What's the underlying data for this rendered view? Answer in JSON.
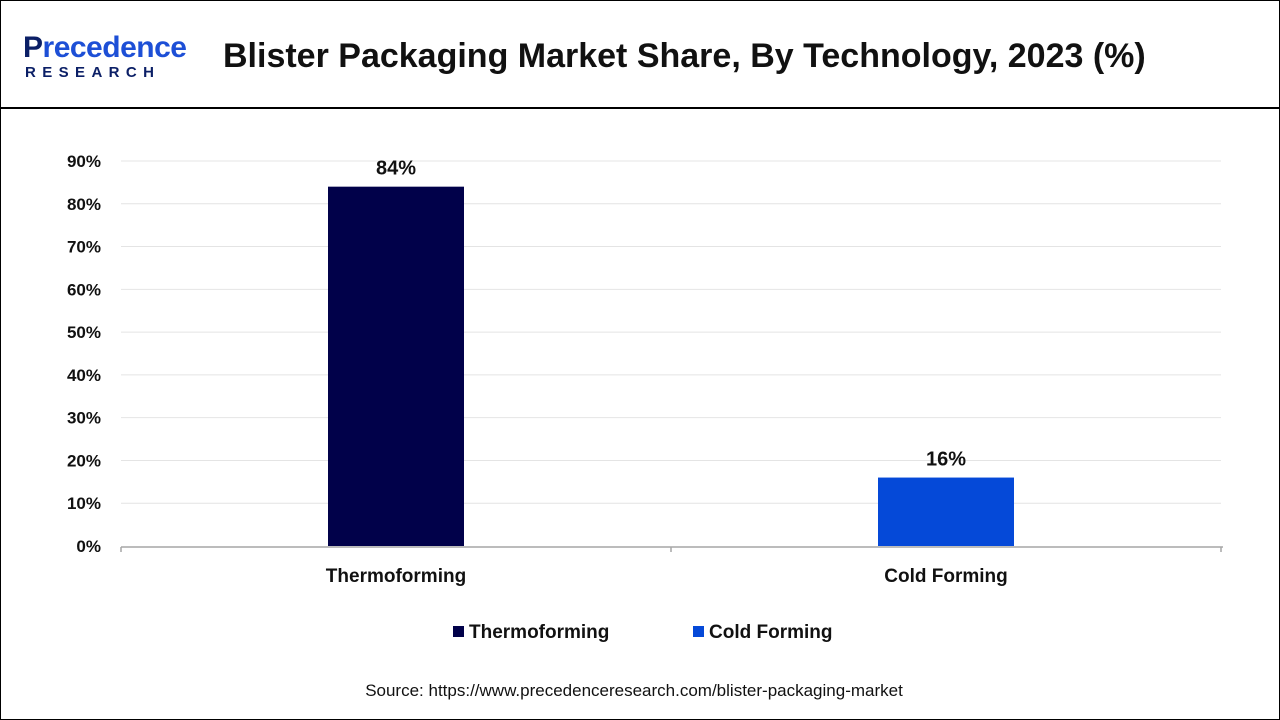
{
  "header": {
    "logo_top_first": "P",
    "logo_top_rest": "recedence",
    "logo_bottom": "RESEARCH",
    "title": "Blister Packaging Market Share, By Technology, 2023 (%)"
  },
  "chart_data": {
    "type": "bar",
    "categories": [
      "Thermoforming",
      "Cold Forming"
    ],
    "values": [
      84,
      16
    ],
    "data_labels": [
      "84%",
      "16%"
    ],
    "colors": [
      "#01014a",
      "#0549d8"
    ],
    "ylim": [
      0,
      90
    ],
    "yticks": [
      0,
      10,
      20,
      30,
      40,
      50,
      60,
      70,
      80,
      90
    ],
    "ytick_labels": [
      "0%",
      "10%",
      "20%",
      "30%",
      "40%",
      "50%",
      "60%",
      "70%",
      "80%",
      "90%"
    ],
    "grid": true,
    "legend": {
      "placement": "bottom",
      "entries": [
        {
          "label": "Thermoforming",
          "color": "#01014a"
        },
        {
          "label": "Cold Forming",
          "color": "#0549d8"
        }
      ]
    }
  },
  "footer": {
    "source": "Source: https://www.precedenceresearch.com/blister-packaging-market"
  }
}
